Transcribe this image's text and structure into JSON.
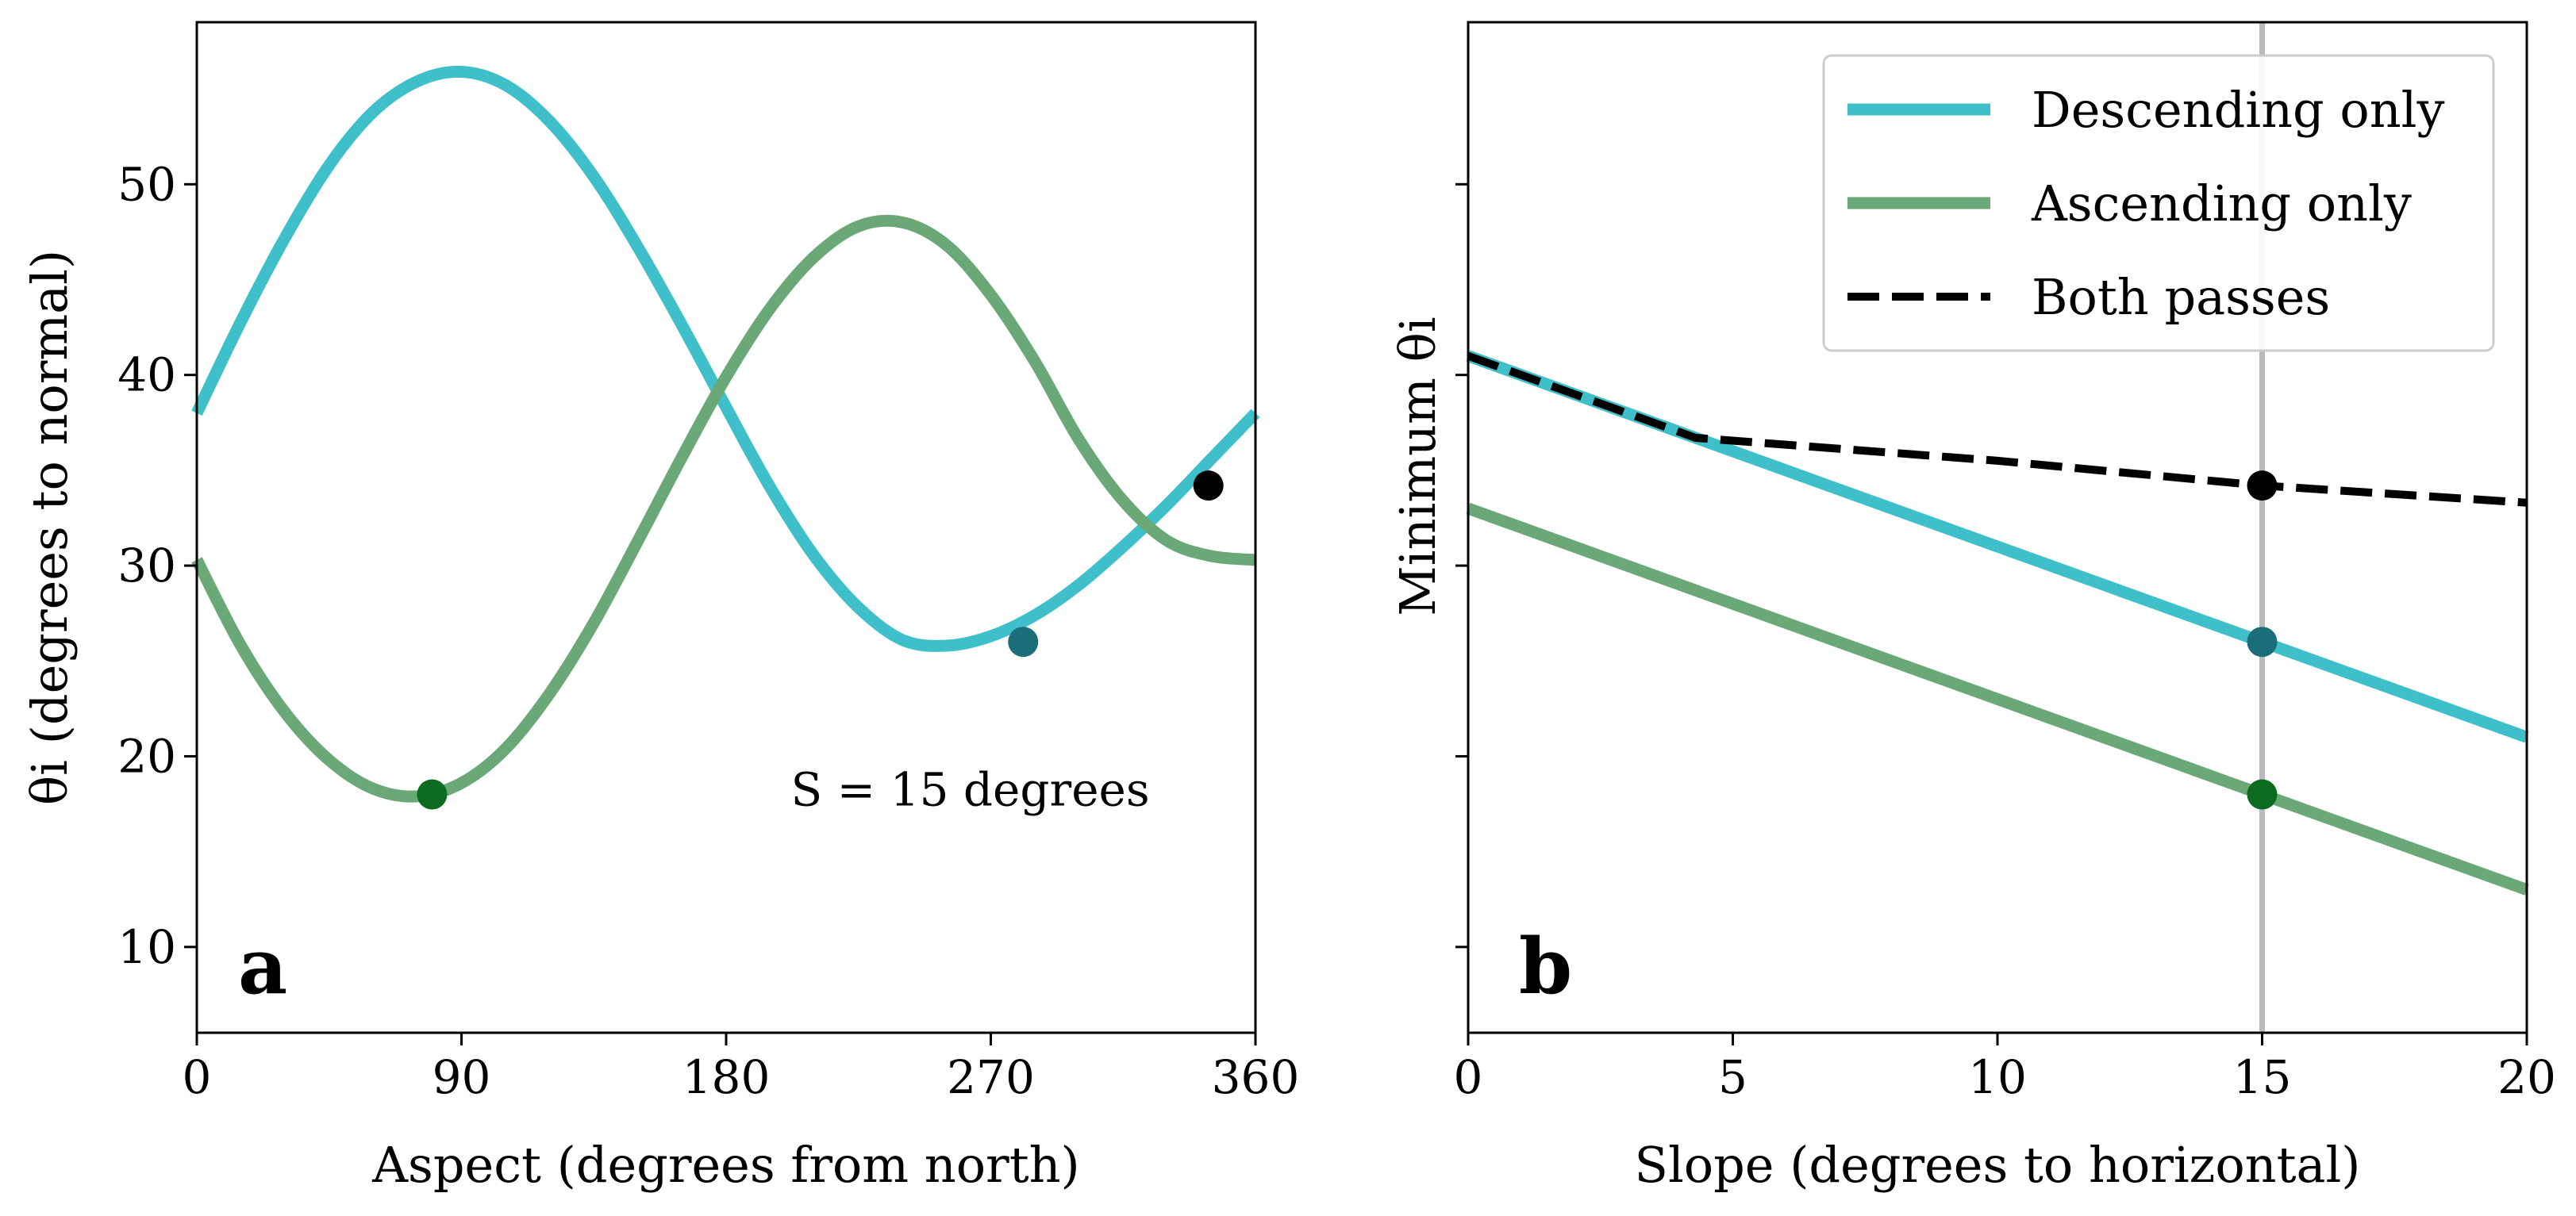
{
  "colors": {
    "descending": "#3FBFCA",
    "ascending": "#6AA878",
    "both": "#000000",
    "marker_descending": "#1A6E7A",
    "marker_ascending": "#0B6B1E",
    "marker_both": "#000000",
    "vline": "#BBBBBB"
  },
  "chart_data": [
    {
      "type": "line",
      "panel": "a",
      "xlabel": "Aspect (degrees from north)",
      "ylabel": "θi (degrees to normal)",
      "xlim": [
        0,
        360
      ],
      "ylim": [
        5.5,
        58.5
      ],
      "xticks": [
        0,
        90,
        180,
        270,
        360
      ],
      "yticks": [
        10,
        20,
        30,
        40,
        50
      ],
      "grid": false,
      "annotation": "S = 15 degrees",
      "series": [
        {
          "key": "descending",
          "x": [
            0,
            15,
            30,
            45,
            60,
            75,
            90,
            105,
            120,
            135,
            150,
            165,
            180,
            195,
            210,
            225,
            240,
            255,
            270,
            285,
            300,
            315,
            330,
            345,
            360
          ],
          "values": [
            38,
            42.8,
            47.2,
            51.0,
            53.8,
            55.4,
            55.9,
            55.2,
            53.3,
            50.4,
            46.7,
            42.6,
            38.3,
            34.1,
            30.5,
            27.8,
            26.1,
            25.8,
            26.3,
            27.4,
            29.0,
            31.0,
            33.2,
            35.6,
            38.0
          ]
        },
        {
          "key": "ascending",
          "x": [
            0,
            15,
            30,
            45,
            60,
            75,
            90,
            105,
            120,
            135,
            150,
            165,
            180,
            195,
            210,
            225,
            240,
            255,
            270,
            285,
            300,
            315,
            330,
            345,
            360
          ],
          "values": [
            30.3,
            25.8,
            22.3,
            19.8,
            18.3,
            17.9,
            18.6,
            20.4,
            23.3,
            27.0,
            31.3,
            35.7,
            39.9,
            43.5,
            46.2,
            47.8,
            48.0,
            46.8,
            44.2,
            40.7,
            36.6,
            33.4,
            31.3,
            30.5,
            30.3
          ]
        }
      ],
      "markers": [
        {
          "key": "ascending",
          "x": 80,
          "y": 18
        },
        {
          "key": "descending",
          "x": 281,
          "y": 26
        },
        {
          "key": "both",
          "x": 344,
          "y": 34.2
        }
      ],
      "panel_letter": "a"
    },
    {
      "type": "line",
      "panel": "b",
      "xlabel": "Slope (degrees to horizontal)",
      "ylabel": "Minimum θi",
      "xlim": [
        0,
        20
      ],
      "ylim": [
        5.5,
        58.5
      ],
      "xticks": [
        0,
        5,
        10,
        15,
        20
      ],
      "yticks": [
        10,
        20,
        30,
        40,
        50
      ],
      "ytick_labels_shown": false,
      "grid": false,
      "vline_x": 15,
      "series": [
        {
          "key": "descending",
          "name": "Descending only",
          "style": "solid",
          "x": [
            0,
            20
          ],
          "values": [
            41,
            21
          ]
        },
        {
          "key": "ascending",
          "name": "Ascending only",
          "style": "solid",
          "x": [
            0,
            20
          ],
          "values": [
            33,
            13
          ]
        },
        {
          "key": "both",
          "name": "Both passes",
          "style": "dashed",
          "x": [
            0,
            4.3,
            10,
            15,
            20
          ],
          "values": [
            41,
            36.7,
            35.5,
            34.2,
            33.3
          ]
        }
      ],
      "markers": [
        {
          "key": "both",
          "x": 15,
          "y": 34.2
        },
        {
          "key": "descending",
          "x": 15,
          "y": 26
        },
        {
          "key": "ascending",
          "x": 15,
          "y": 18
        }
      ],
      "legend": {
        "placement": "top-right",
        "entries": [
          "Descending only",
          "Ascending only",
          "Both passes"
        ]
      },
      "panel_letter": "b"
    }
  ]
}
